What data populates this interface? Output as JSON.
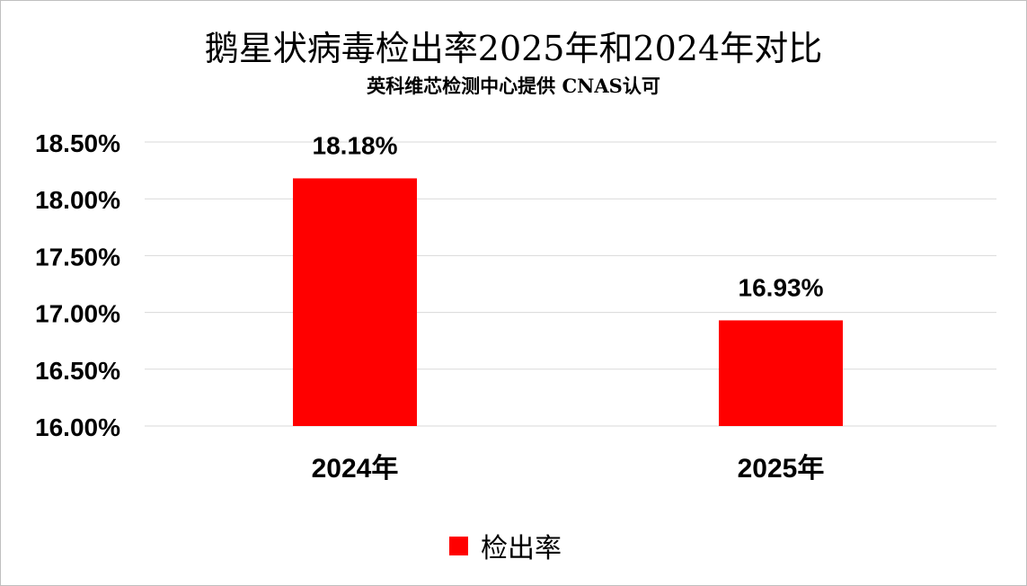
{
  "chart_data": {
    "type": "bar",
    "title": "鹅星状病毒检出率2025年和2024年对比",
    "subtitle": "英科维芯检测中心提供   CNAS认可",
    "categories": [
      "2024年",
      "2025年"
    ],
    "series": [
      {
        "name": "检出率",
        "values": [
          18.18,
          16.93
        ],
        "color": "#ff0000"
      }
    ],
    "data_labels": [
      "18.18%",
      "16.93%"
    ],
    "ylim": [
      16.0,
      18.5
    ],
    "yticks": [
      16.0,
      16.5,
      17.0,
      17.5,
      18.0,
      18.5
    ],
    "ytick_labels": [
      "16.00%",
      "16.50%",
      "17.00%",
      "17.50%",
      "18.00%",
      "18.50%"
    ],
    "xlabel": "",
    "ylabel": "",
    "grid": true,
    "legend": "bottom"
  }
}
